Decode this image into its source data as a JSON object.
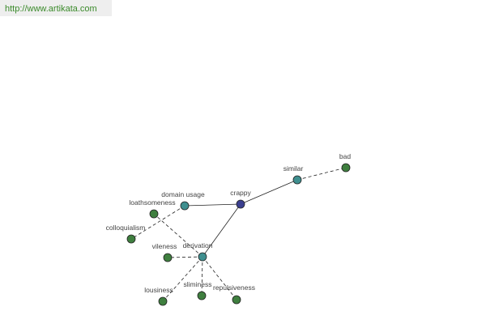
{
  "header": {
    "url": "http://www.artikata.com"
  },
  "nodes": [
    {
      "label": "crappy"
    },
    {
      "label": "similar"
    },
    {
      "label": "bad"
    },
    {
      "label": "domain usage"
    },
    {
      "label": "derivation"
    },
    {
      "label": "loathsomeness"
    },
    {
      "label": "colloquialism"
    },
    {
      "label": "vileness"
    },
    {
      "label": "lousiness"
    },
    {
      "label": "sliminess"
    },
    {
      "label": "repulsiveness"
    }
  ]
}
